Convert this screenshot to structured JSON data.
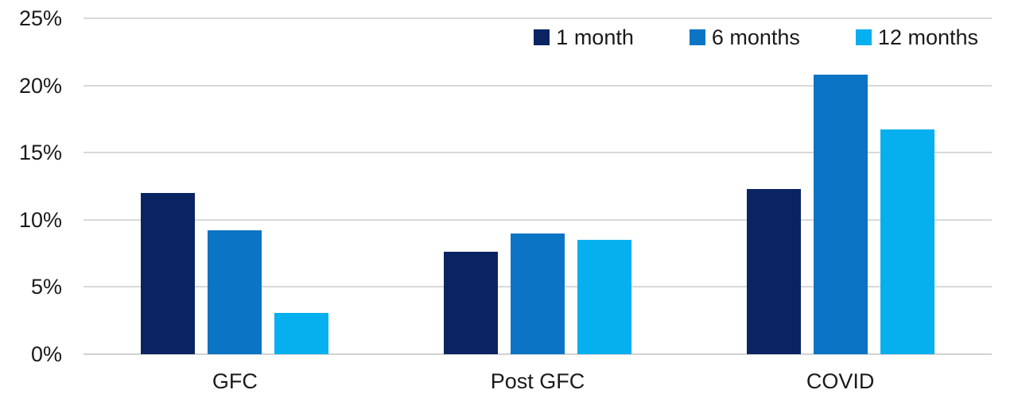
{
  "chart_data": {
    "type": "bar",
    "title": "",
    "categories": [
      "GFC",
      "Post GFC",
      "COVID"
    ],
    "series": [
      {
        "name": "1 month",
        "color": "#0A2463",
        "values": [
          12.0,
          7.6,
          12.3
        ]
      },
      {
        "name": "6 months",
        "color": "#0B74C4",
        "values": [
          9.2,
          9.0,
          20.8
        ]
      },
      {
        "name": "12 months",
        "color": "#06AFEE",
        "values": [
          3.1,
          8.5,
          16.7
        ]
      }
    ],
    "y_axis": {
      "min": 0,
      "max": 25,
      "step": 5,
      "tick_labels": [
        "0%",
        "5%",
        "10%",
        "15%",
        "20%",
        "25%"
      ],
      "unit": "percent"
    },
    "legend_position": "top-right",
    "grid": "horizontal",
    "colors": {
      "gridline": "#D9D9D9",
      "axis_line": "#D2D2D2",
      "text": "#1A1A1A",
      "background": "#FFFFFF"
    }
  }
}
